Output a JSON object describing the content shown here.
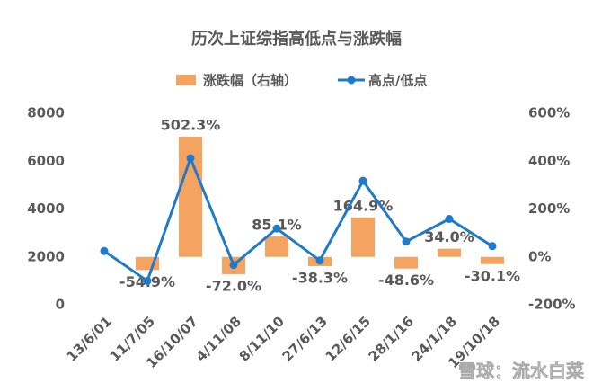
{
  "chart_data": {
    "type": "bar_line",
    "title": "历次上证综指高低点与涨跌幅",
    "categories": [
      "13/6/01",
      "11/7/05",
      "16/10/07",
      "4/11/08",
      "8/11/10",
      "27/6/13",
      "12/6/15",
      "28/1/16",
      "24/1/18",
      "19/10/18"
    ],
    "series": [
      {
        "name": "涨跌幅（右轴）",
        "color": "#f4a460",
        "kind": "bar",
        "axis": "y2",
        "values": [
          null,
          -54.9,
          502.3,
          -72.0,
          85.1,
          -38.3,
          164.9,
          -48.6,
          34.0,
          -30.1
        ],
        "value_labels": [
          null,
          "-54.9%",
          "502.3%",
          "-72.0%",
          "85.1%",
          "-38.3%",
          "164.9%",
          "-48.6%",
          "34.0%",
          "-30.1%"
        ]
      },
      {
        "name": "高点/低点",
        "color": "#1f7bc9",
        "kind": "line",
        "values": [
          2245,
          998,
          6124,
          1664,
          3186,
          1849,
          5178,
          2638,
          3587,
          2449
        ]
      }
    ],
    "ylim": [
      0,
      8000
    ],
    "yticks": [
      0,
      2000,
      4000,
      6000,
      8000
    ],
    "y2lim": [
      -200,
      600
    ],
    "y2ticks": [
      {
        "value": -200,
        "label": "-200%"
      },
      {
        "value": 0,
        "label": "0%"
      },
      {
        "value": 200,
        "label": "200%"
      },
      {
        "value": 400,
        "label": "400%"
      },
      {
        "value": 600,
        "label": "600%"
      }
    ],
    "legend": "top",
    "watermark": "雪球：流水白菜"
  }
}
